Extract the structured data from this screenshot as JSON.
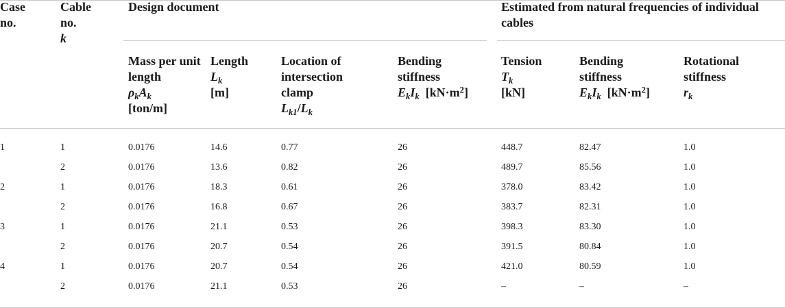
{
  "table": {
    "headers": {
      "case_no": "Case no.",
      "cable_no": "Cable no.",
      "cable_k": "k",
      "design_document": "Design document",
      "estimated": "Estimated from natural frequencies of individual cables",
      "mass_label": "Mass per unit length",
      "mass_sym_rho": "ρ",
      "mass_sym_k1": "k",
      "mass_sym_A": "A",
      "mass_sym_k2": "k",
      "mass_unit": "[ton/m]",
      "length_label": "Length",
      "length_sym": "L",
      "length_sub": "k",
      "length_unit": "[m]",
      "location_label": "Location of intersection clamp",
      "location_sym_L1": "L",
      "location_sub1": "k1",
      "location_slash": "/",
      "location_sym_L2": "L",
      "location_sub2": "k",
      "bending_label": "Bending stiffness",
      "bending_sym_E": "E",
      "bending_sub_E": "k",
      "bending_sym_I": "I",
      "bending_sub_I": "k",
      "bending_unit": "[kN·m",
      "bending_unit_sup": "2",
      "bending_unit_end": "]",
      "tension_label": "Tension",
      "tension_sym": "T",
      "tension_sub": "k",
      "tension_unit": "[kN]",
      "bending2_label": "Bending stiffness",
      "bending2_sym_E": "E",
      "bending2_sub_E": "k",
      "bending2_sym_I": "I",
      "bending2_sub_I": "k",
      "bending2_unit": "[kN·m",
      "bending2_unit_sup": "2",
      "bending2_unit_end": "]",
      "rotational_label": "Rotational stiffness",
      "rotational_sym": "r",
      "rotational_sub": "k"
    },
    "rows": [
      [
        "1",
        "1",
        "0.0176",
        "14.6",
        "0.77",
        "26",
        "448.7",
        "82.47",
        "1.0"
      ],
      [
        "",
        "2",
        "0.0176",
        "13.6",
        "0.82",
        "26",
        "489.7",
        "85.56",
        "1.0"
      ],
      [
        "2",
        "1",
        "0.0176",
        "18.3",
        "0.61",
        "26",
        "378.0",
        "83.42",
        "1.0"
      ],
      [
        "",
        "2",
        "0.0176",
        "16.8",
        "0.67",
        "26",
        "383.7",
        "82.31",
        "1.0"
      ],
      [
        "3",
        "1",
        "0.0176",
        "21.1",
        "0.53",
        "26",
        "398.3",
        "83.30",
        "1.0"
      ],
      [
        "",
        "2",
        "0.0176",
        "20.7",
        "0.54",
        "26",
        "391.5",
        "80.84",
        "1.0"
      ],
      [
        "4",
        "1",
        "0.0176",
        "20.7",
        "0.54",
        "26",
        "421.0",
        "80.59",
        "1.0"
      ],
      [
        "",
        "2",
        "0.0176",
        "21.1",
        "0.53",
        "26",
        "–",
        "–",
        "–"
      ]
    ]
  }
}
